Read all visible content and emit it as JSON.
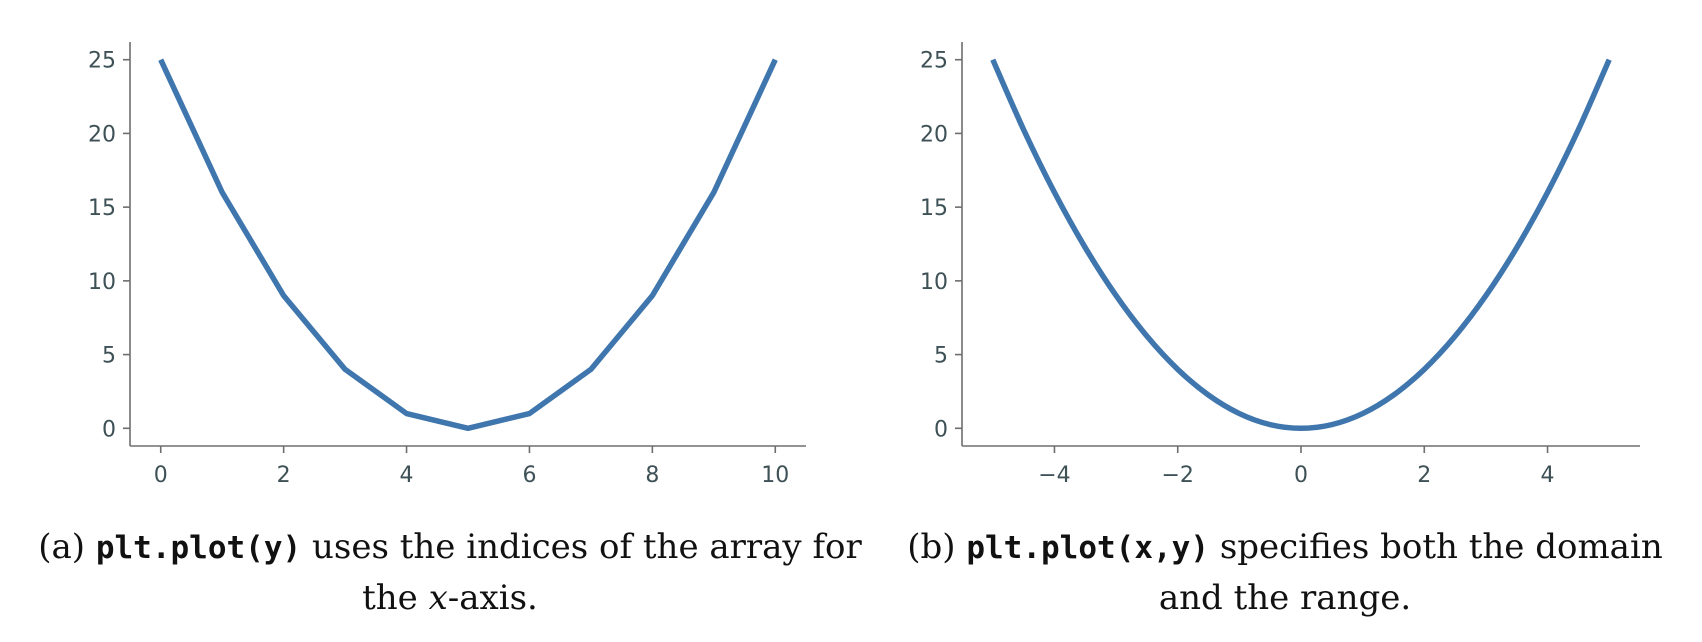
{
  "figure": {
    "line_color": "#3f76ad",
    "axis_color": "#6e6e6e",
    "tick_text_color": "#3e5156"
  },
  "chart_data": [
    {
      "id": "a",
      "type": "line",
      "x": [
        0,
        1,
        2,
        3,
        4,
        5,
        6,
        7,
        8,
        9,
        10
      ],
      "series": [
        {
          "values": [
            25,
            16,
            9,
            4,
            1,
            0,
            1,
            4,
            9,
            16,
            25
          ]
        }
      ],
      "xlim": [
        -0.5,
        10.5
      ],
      "ylim": [
        -1.2,
        26.2
      ],
      "xticks": [
        0,
        2,
        4,
        6,
        8,
        10
      ],
      "xtick_labels": [
        "0",
        "2",
        "4",
        "6",
        "8",
        "10"
      ],
      "yticks": [
        0,
        5,
        10,
        15,
        20,
        25
      ],
      "ytick_labels": [
        "0",
        "5",
        "10",
        "15",
        "20",
        "25"
      ],
      "grid": false,
      "title": "",
      "xlabel": "",
      "ylabel": ""
    },
    {
      "id": "b",
      "type": "line",
      "x": [
        -5,
        -4.5,
        -4,
        -3.5,
        -3,
        -2.5,
        -2,
        -1.5,
        -1,
        -0.5,
        0,
        0.5,
        1,
        1.5,
        2,
        2.5,
        3,
        3.5,
        4,
        4.5,
        5
      ],
      "series": [
        {
          "values": [
            25,
            20.25,
            16,
            12.25,
            9,
            6.25,
            4,
            2.25,
            1,
            0.25,
            0,
            0.25,
            1,
            2.25,
            4,
            6.25,
            9,
            12.25,
            16,
            20.25,
            25
          ]
        }
      ],
      "xlim": [
        -5.5,
        5.5
      ],
      "ylim": [
        -1.2,
        26.2
      ],
      "xticks": [
        -4,
        -2,
        0,
        2,
        4
      ],
      "xtick_labels": [
        "−4",
        "−2",
        "0",
        "2",
        "4"
      ],
      "yticks": [
        0,
        5,
        10,
        15,
        20,
        25
      ],
      "ytick_labels": [
        "0",
        "5",
        "10",
        "15",
        "20",
        "25"
      ],
      "grid": false,
      "title": "",
      "xlabel": "",
      "ylabel": ""
    }
  ],
  "captions": {
    "a": {
      "label": "(a)",
      "code": "plt.plot(y)",
      "text1": "uses the indices of the array for",
      "text2": "the",
      "math": "x",
      "text3": "-axis."
    },
    "b": {
      "label": "(b)",
      "code": "plt.plot(x,y)",
      "text1": "specifies both the domain",
      "text2": "and the range."
    }
  }
}
